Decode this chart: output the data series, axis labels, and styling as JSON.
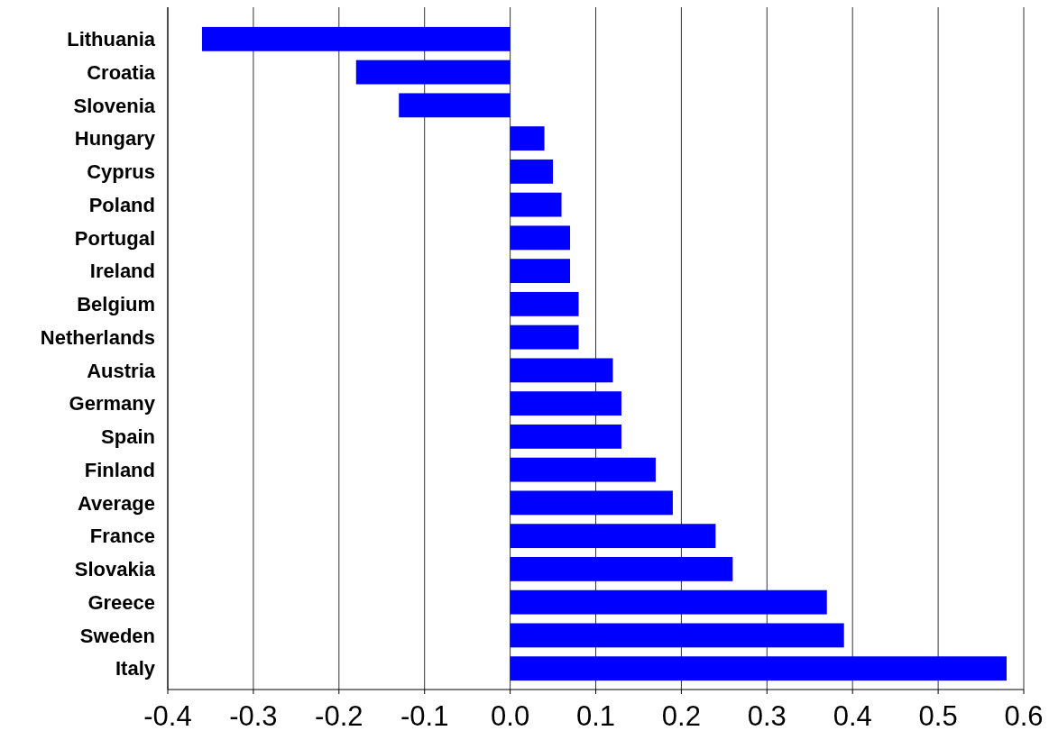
{
  "chart_data": {
    "type": "bar",
    "orientation": "horizontal",
    "categories": [
      "Lithuania",
      "Croatia",
      "Slovenia",
      "Hungary",
      "Cyprus",
      "Poland",
      "Portugal",
      "Ireland",
      "Belgium",
      "Netherlands",
      "Austria",
      "Germany",
      "Spain",
      "Finland",
      "Average",
      "France",
      "Slovakia",
      "Greece",
      "Sweden",
      "Italy"
    ],
    "values": [
      -0.36,
      -0.18,
      -0.13,
      0.04,
      0.05,
      0.06,
      0.07,
      0.07,
      0.08,
      0.08,
      0.12,
      0.13,
      0.13,
      0.17,
      0.19,
      0.24,
      0.26,
      0.37,
      0.39,
      0.58
    ],
    "color": "#0000ff",
    "xlim": [
      -0.4,
      0.6
    ],
    "xticks": [
      -0.4,
      -0.3,
      -0.2,
      -0.1,
      {
        "value": 0,
        "label": "0.0"
      },
      0.1,
      0.2,
      0.3,
      0.4,
      0.5,
      0.6
    ],
    "grid": "x"
  }
}
